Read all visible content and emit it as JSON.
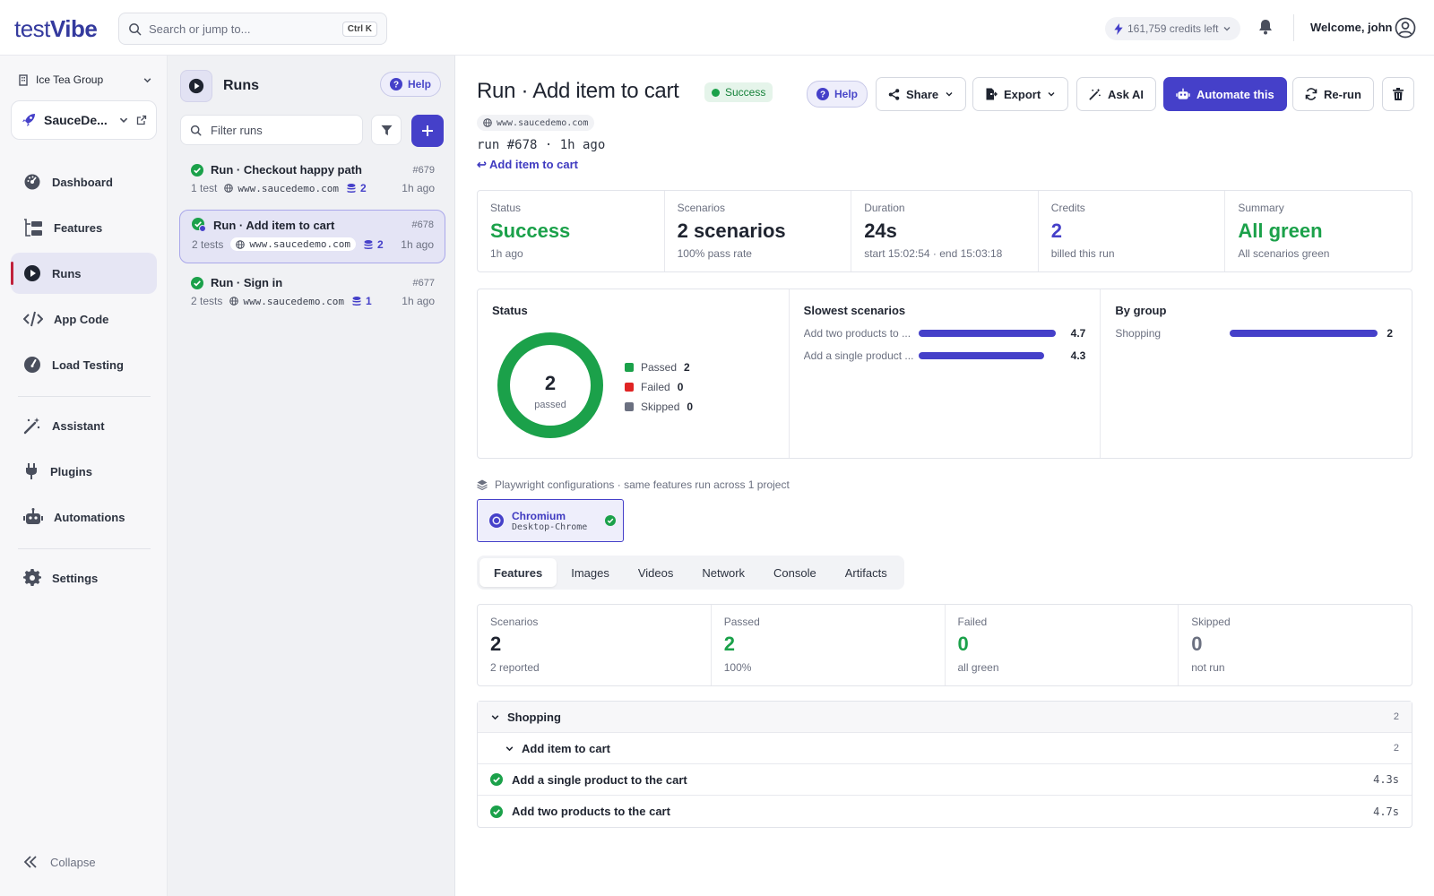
{
  "brand": {
    "logo_part1": "test",
    "logo_part2": "Vibe"
  },
  "topbar": {
    "search_placeholder": "Search or jump to...",
    "search_shortcut": "Ctrl K",
    "credits": "161,759 credits left",
    "welcome": "Welcome, john"
  },
  "sidebar": {
    "org": "Ice Tea Group",
    "project": "SauceDe...",
    "items": [
      {
        "label": "Dashboard",
        "icon": "gauge-icon"
      },
      {
        "label": "Features",
        "icon": "folders-icon"
      },
      {
        "label": "Runs",
        "icon": "play-circle-icon",
        "active": true
      },
      {
        "label": "App Code",
        "icon": "code-icon"
      },
      {
        "label": "Load Testing",
        "icon": "speedometer-icon"
      },
      {
        "label": "Assistant",
        "icon": "magic-wand-icon"
      },
      {
        "label": "Plugins",
        "icon": "plug-icon"
      },
      {
        "label": "Automations",
        "icon": "robot-icon"
      },
      {
        "label": "Settings",
        "icon": "gear-icon"
      }
    ],
    "collapse": "Collapse"
  },
  "runs_panel": {
    "title": "Runs",
    "help": "Help",
    "filter_placeholder": "Filter runs",
    "runs": [
      {
        "name": "Run · Checkout happy path",
        "id": "#679",
        "tests": "1 test",
        "url": "www.saucedemo.com",
        "credits": "2",
        "ago": "1h ago"
      },
      {
        "name": "Run · Add item to cart",
        "id": "#678",
        "tests": "2 tests",
        "url": "www.saucedemo.com",
        "credits": "2",
        "ago": "1h ago",
        "selected": true
      },
      {
        "name": "Run · Sign in",
        "id": "#677",
        "tests": "2 tests",
        "url": "www.saucedemo.com",
        "credits": "1",
        "ago": "1h ago"
      }
    ]
  },
  "run": {
    "title": "Run · Add item to cart",
    "status_badge": "Success",
    "url": "www.saucedemo.com",
    "meta": "run #678 · 1h ago",
    "back_link": "↩ Add item to cart",
    "actions": {
      "help": "Help",
      "share": "Share",
      "export": "Export",
      "ask_ai": "Ask AI",
      "automate": "Automate this",
      "rerun": "Re-run"
    }
  },
  "stats": [
    {
      "key": "Status",
      "value": "Success",
      "sub": "1h ago",
      "color": "green"
    },
    {
      "key": "Scenarios",
      "value": "2 scenarios",
      "sub": "100% pass rate",
      "color": ""
    },
    {
      "key": "Duration",
      "value": "24s",
      "sub": "start 15:02:54 · end 15:03:18",
      "color": ""
    },
    {
      "key": "Credits",
      "value": "2",
      "sub": "billed this run",
      "color": "purple"
    },
    {
      "key": "Summary",
      "value": "All green",
      "sub": "All scenarios green",
      "color": "green"
    }
  ],
  "status_panel": {
    "title": "Status",
    "center_value": "2",
    "center_label": "passed",
    "legend": [
      {
        "label": "Passed",
        "value": "2",
        "color": "#1ba14a"
      },
      {
        "label": "Failed",
        "value": "0",
        "color": "#e02424"
      },
      {
        "label": "Skipped",
        "value": "0",
        "color": "#6b7080"
      }
    ]
  },
  "slowest_panel": {
    "title": "Slowest scenarios",
    "rows": [
      {
        "label": "Add two products to ...",
        "value": "4.7",
        "fraction": 0.96
      },
      {
        "label": "Add a single product ...",
        "value": "4.3",
        "fraction": 0.88
      }
    ]
  },
  "group_panel": {
    "title": "By group",
    "rows": [
      {
        "label": "Shopping",
        "value": "2",
        "fraction": 1.0
      }
    ]
  },
  "playwright": {
    "caption": "Playwright configurations · same features run across 1 project",
    "config_name": "Chromium",
    "config_sub": "Desktop-Chrome"
  },
  "tabs": [
    "Features",
    "Images",
    "Videos",
    "Network",
    "Console",
    "Artifacts"
  ],
  "kpis": [
    {
      "key": "Scenarios",
      "value": "2",
      "sub": "2 reported",
      "color": ""
    },
    {
      "key": "Passed",
      "value": "2",
      "sub": "100%",
      "color": "green"
    },
    {
      "key": "Failed",
      "value": "0",
      "sub": "all green",
      "color": "green"
    },
    {
      "key": "Skipped",
      "value": "0",
      "sub": "not run",
      "color": "gray"
    }
  ],
  "tree": {
    "group": "Shopping",
    "group_count": "2",
    "feature": "Add item to cart",
    "feature_count": "2",
    "scenarios": [
      {
        "name": "Add a single product to the cart",
        "duration": "4.3s"
      },
      {
        "name": "Add two products to the cart",
        "duration": "4.7s"
      }
    ]
  },
  "colors": {
    "accent": "#4540c9",
    "success": "#1ba14a",
    "danger": "#e02424"
  }
}
